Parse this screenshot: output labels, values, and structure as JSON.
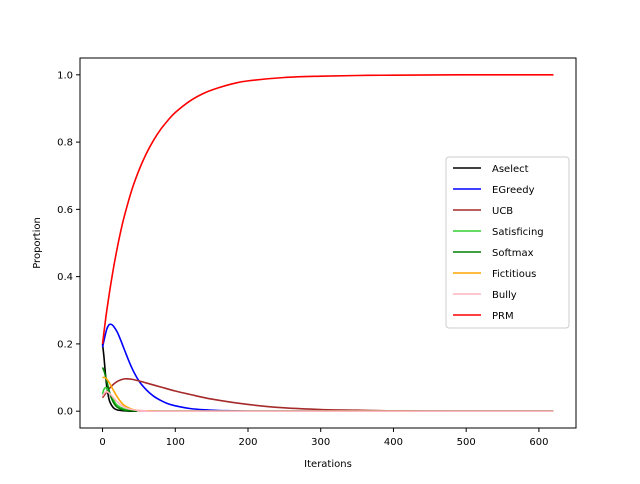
{
  "chart_data": {
    "type": "line",
    "xlabel": "Iterations",
    "ylabel": "Proportion",
    "xlim": [
      -31,
      651
    ],
    "ylim": [
      -0.05,
      1.05
    ],
    "x_ticks": [
      0,
      100,
      200,
      300,
      400,
      500,
      600
    ],
    "y_ticks": [
      0.0,
      0.2,
      0.4,
      0.6,
      0.8,
      1.0
    ],
    "x_tick_labels": [
      "0",
      "100",
      "200",
      "300",
      "400",
      "500",
      "600"
    ],
    "y_tick_labels": [
      "0.0",
      "0.2",
      "0.4",
      "0.6",
      "0.8",
      "1.0"
    ],
    "grid": false,
    "legend_position": "center-right",
    "series": [
      {
        "name": "Aselect",
        "color": "#000000",
        "x": [
          0,
          2,
          4,
          6,
          8,
          10,
          15,
          20,
          30,
          40,
          60,
          100,
          200,
          400,
          620
        ],
        "y": [
          0.2,
          0.16,
          0.11,
          0.07,
          0.045,
          0.028,
          0.01,
          0.004,
          0.001,
          0.0,
          0.0,
          0.0,
          0.0,
          0.0,
          0.0
        ]
      },
      {
        "name": "EGreedy",
        "color": "#0000ff",
        "x": [
          0,
          3,
          6,
          9,
          12,
          15,
          20,
          25,
          30,
          40,
          50,
          60,
          70,
          80,
          90,
          100,
          120,
          140,
          160,
          180,
          200,
          250,
          300,
          620
        ],
        "y": [
          0.19,
          0.22,
          0.245,
          0.257,
          0.258,
          0.253,
          0.236,
          0.211,
          0.183,
          0.13,
          0.09,
          0.064,
          0.045,
          0.032,
          0.022,
          0.016,
          0.008,
          0.004,
          0.002,
          0.001,
          0.0,
          0.0,
          0.0,
          0.0
        ]
      },
      {
        "name": "UCB",
        "color": "#a52a2a",
        "x": [
          0,
          5,
          10,
          15,
          20,
          25,
          30,
          35,
          40,
          50,
          60,
          80,
          100,
          120,
          150,
          200,
          250,
          300,
          350,
          400,
          500,
          620
        ],
        "y": [
          0.04,
          0.055,
          0.069,
          0.08,
          0.088,
          0.093,
          0.096,
          0.096,
          0.095,
          0.09,
          0.084,
          0.072,
          0.06,
          0.05,
          0.036,
          0.02,
          0.01,
          0.005,
          0.003,
          0.001,
          0.0,
          0.0
        ]
      },
      {
        "name": "Satisficing",
        "color": "#32cd32",
        "x": [
          0,
          2,
          5,
          8,
          12,
          16,
          20,
          30,
          40,
          60,
          100,
          620
        ],
        "y": [
          0.05,
          0.065,
          0.07,
          0.06,
          0.045,
          0.03,
          0.018,
          0.006,
          0.002,
          0.0,
          0.0,
          0.0
        ]
      },
      {
        "name": "Softmax",
        "color": "#008000",
        "x": [
          0,
          2,
          4,
          6,
          8,
          10,
          12,
          15,
          20,
          30,
          40,
          60,
          100,
          620
        ],
        "y": [
          0.13,
          0.12,
          0.105,
          0.088,
          0.07,
          0.054,
          0.04,
          0.026,
          0.012,
          0.003,
          0.001,
          0.0,
          0.0,
          0.0
        ]
      },
      {
        "name": "Fictitious",
        "color": "#ffa500",
        "x": [
          0,
          3,
          6,
          10,
          15,
          20,
          25,
          30,
          40,
          50,
          60,
          80,
          100,
          620
        ],
        "y": [
          0.1,
          0.1,
          0.095,
          0.082,
          0.062,
          0.043,
          0.028,
          0.017,
          0.006,
          0.002,
          0.001,
          0.0,
          0.0,
          0.0
        ]
      },
      {
        "name": "Bully",
        "color": "#ffb6c1",
        "x": [
          0,
          3,
          6,
          10,
          15,
          20,
          30,
          40,
          60,
          100,
          620
        ],
        "y": [
          0.045,
          0.055,
          0.058,
          0.052,
          0.04,
          0.028,
          0.012,
          0.005,
          0.001,
          0.0,
          0.0
        ]
      },
      {
        "name": "PRM",
        "color": "#ff0000",
        "x": [
          0,
          3,
          6,
          10,
          15,
          20,
          25,
          30,
          40,
          50,
          60,
          70,
          80,
          90,
          100,
          120,
          140,
          160,
          180,
          200,
          250,
          300,
          350,
          400,
          500,
          620
        ],
        "y": [
          0.2,
          0.253,
          0.302,
          0.36,
          0.425,
          0.483,
          0.535,
          0.58,
          0.656,
          0.716,
          0.765,
          0.805,
          0.838,
          0.865,
          0.888,
          0.922,
          0.946,
          0.962,
          0.974,
          0.982,
          0.992,
          0.996,
          0.998,
          0.999,
          1.0,
          1.0
        ]
      }
    ]
  }
}
